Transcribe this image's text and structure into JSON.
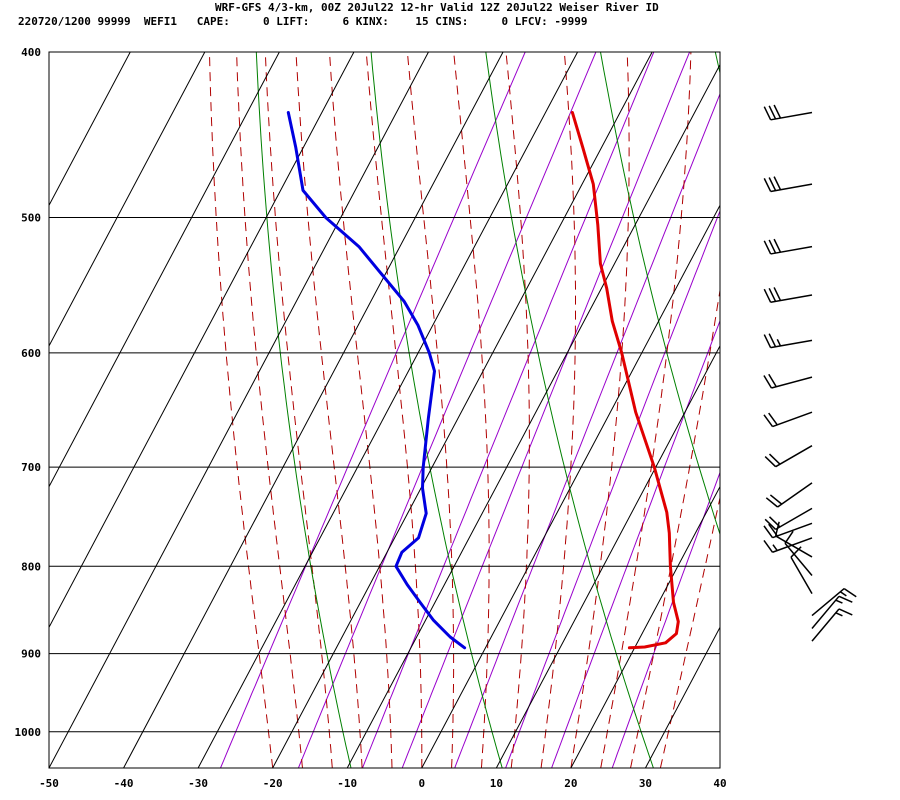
{
  "header": {
    "title": "WRF-GFS 4/3-km, 00Z 20Jul22 12-hr Valid 12Z 20Jul22 Weiser River ID",
    "indices": "220720/1200 99999  WEFI1   CAPE:     0 LIFT:     6 KINX:    15 CINS:     0 LFCV: -9999"
  },
  "chart_data": {
    "type": "line",
    "title": "WRF-GFS 4/3-km, 00Z 20Jul22 12-hr Valid 12Z 20Jul22 Weiser River ID",
    "xlabel": "",
    "ylabel": "",
    "x_scale": "skewed temperature (°C)",
    "y_scale": "log pressure (hPa), inverted",
    "xlim": [
      -50,
      40
    ],
    "ylim": [
      1050,
      400
    ],
    "x_ticks": [
      -50,
      -40,
      -30,
      -20,
      -10,
      0,
      10,
      20,
      30,
      40
    ],
    "y_ticks": [
      400,
      500,
      600,
      700,
      800,
      900,
      1000
    ],
    "grid": true,
    "series": [
      {
        "key": "temperature",
        "color": "#e00000",
        "points": [
          [
            893,
            19.3
          ],
          [
            892,
            21.3
          ],
          [
            887,
            23.8
          ],
          [
            876,
            24.6
          ],
          [
            862,
            24.0
          ],
          [
            840,
            22.0
          ],
          [
            800,
            19.0
          ],
          [
            765,
            16.5
          ],
          [
            744,
            14.7
          ],
          [
            700,
            9.8
          ],
          [
            650,
            3.4
          ],
          [
            600,
            -2.7
          ],
          [
            575,
            -6.2
          ],
          [
            550,
            -9.3
          ],
          [
            532,
            -11.9
          ],
          [
            505,
            -15.0
          ],
          [
            478,
            -18.5
          ],
          [
            455,
            -22.5
          ],
          [
            434,
            -26.4
          ]
        ]
      },
      {
        "key": "dewpoint",
        "color": "#0000e0",
        "points": [
          [
            893,
            -2.8
          ],
          [
            880,
            -5.5
          ],
          [
            860,
            -9.0
          ],
          [
            840,
            -12.0
          ],
          [
            820,
            -15.0
          ],
          [
            800,
            -17.8
          ],
          [
            785,
            -18.0
          ],
          [
            770,
            -16.8
          ],
          [
            745,
            -17.5
          ],
          [
            720,
            -19.8
          ],
          [
            700,
            -21.2
          ],
          [
            655,
            -24.0
          ],
          [
            615,
            -26.5
          ],
          [
            600,
            -28.5
          ],
          [
            578,
            -32.0
          ],
          [
            560,
            -35.5
          ],
          [
            520,
            -45.5
          ],
          [
            500,
            -52.0
          ],
          [
            482,
            -57.0
          ],
          [
            455,
            -61.0
          ],
          [
            434,
            -64.5
          ]
        ]
      }
    ],
    "isotherms_c": [
      -90,
      -80,
      -70,
      -60,
      -50,
      -40,
      -30,
      -20,
      -10,
      0,
      10,
      20,
      30,
      40
    ],
    "dry_adiabats_theta_k": [
      260,
      280,
      300,
      320,
      340,
      360,
      380,
      400,
      420,
      440,
      460,
      480,
      500,
      520
    ],
    "moist_adiabats_c": [
      -20,
      -16,
      -12,
      -8,
      -4,
      0,
      4,
      8,
      12,
      16,
      20,
      24,
      28,
      32
    ],
    "mixing_ratios_gkg": [
      0.4,
      1,
      2,
      3,
      5,
      8,
      12,
      20
    ],
    "wind_barbs": [
      {
        "p": 434,
        "dir": 260,
        "spd": 30
      },
      {
        "p": 478,
        "dir": 260,
        "spd": 30
      },
      {
        "p": 520,
        "dir": 260,
        "spd": 30
      },
      {
        "p": 555,
        "dir": 260,
        "spd": 30
      },
      {
        "p": 590,
        "dir": 260,
        "spd": 25
      },
      {
        "p": 620,
        "dir": 255,
        "spd": 20
      },
      {
        "p": 650,
        "dir": 250,
        "spd": 20
      },
      {
        "p": 680,
        "dir": 240,
        "spd": 20
      },
      {
        "p": 715,
        "dir": 235,
        "spd": 20
      },
      {
        "p": 740,
        "dir": 240,
        "spd": 20
      },
      {
        "p": 755,
        "dir": 250,
        "spd": 20
      },
      {
        "p": 770,
        "dir": 250,
        "spd": 15
      },
      {
        "p": 790,
        "dir": 300,
        "spd": 10
      },
      {
        "p": 810,
        "dir": 320,
        "spd": 10
      },
      {
        "p": 830,
        "dir": 330,
        "spd": 10
      },
      {
        "p": 855,
        "dir": 50,
        "spd": 15
      },
      {
        "p": 870,
        "dir": 40,
        "spd": 15
      },
      {
        "p": 885,
        "dir": 40,
        "spd": 15
      }
    ],
    "colors": {
      "frame": "#000000",
      "isotherm": "#000000",
      "dry_adiabat": "#008000",
      "moist_adiabat": "#b00000",
      "mixing_ratio": "#9900cc",
      "temperature": "#e00000",
      "dewpoint": "#0000e0",
      "barb": "#000000"
    }
  }
}
